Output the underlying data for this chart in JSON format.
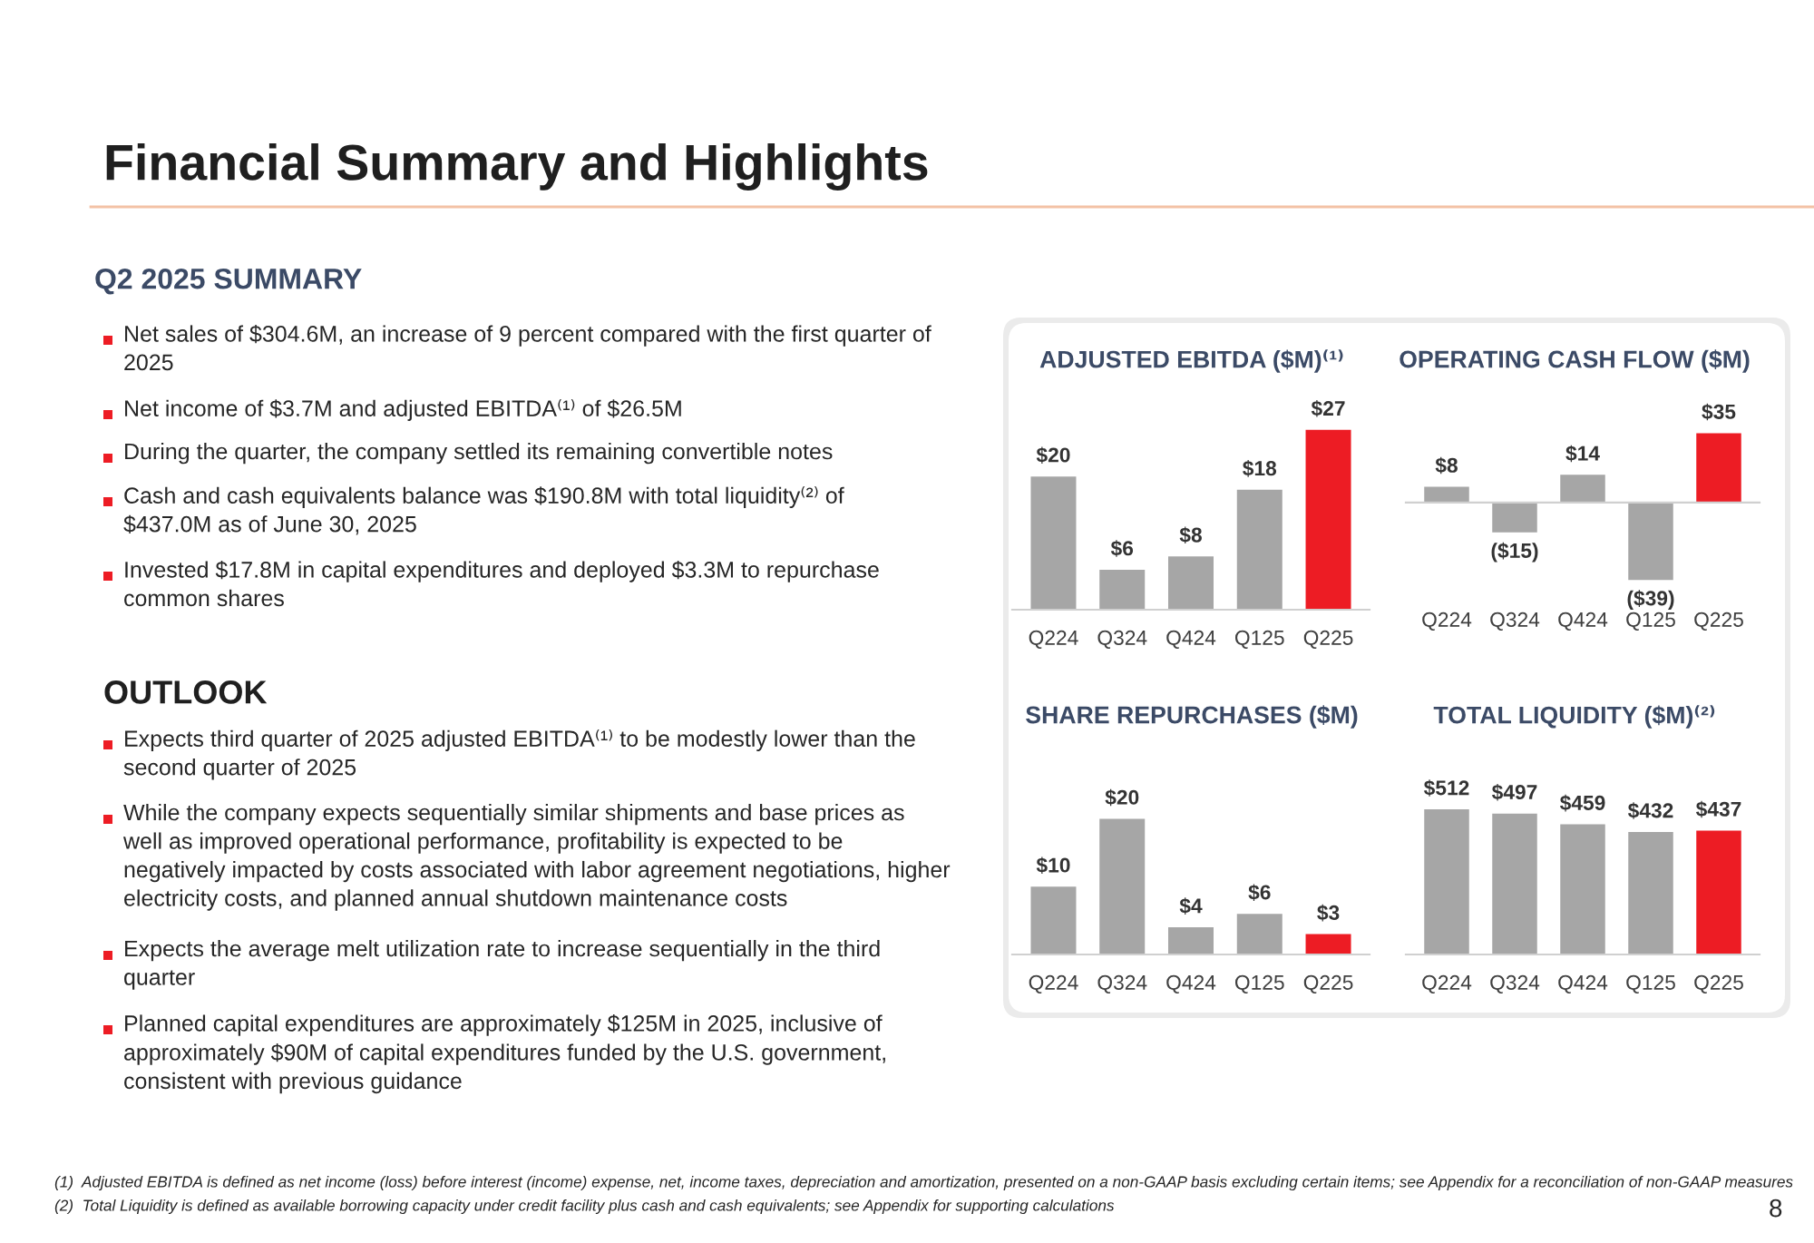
{
  "chart_data": [
    {
      "type": "other",
      "title": "Financial Summary and Highlights",
      "subtitle": "Q2 2025 SUMMARY",
      "annotations": [
        "Net sales of $304.6M, an increase of 9 percent compared with the first quarter of\n2025",
        "Net income of $3.7M and adjusted EBITDA⁽¹⁾ of $26.5M",
        "During the quarter, the company settled its remaining convertible notes",
        "Cash and cash equivalents balance was $190.8M with total liquidity⁽²⁾ of\n$437.0M as of June 30, 2025",
        "Invested $17.8M in capital expenditures and deployed $3.3M to repurchase\ncommon shares"
      ]
    },
    {
      "type": "other",
      "title": "OUTLOOK",
      "annotations": [
        "Expects third quarter of 2025 adjusted EBITDA⁽¹⁾ to be modestly lower than the\nsecond quarter of 2025",
        "While the company expects sequentially similar shipments and base prices as\nwell as improved operational performance, profitability is expected to be\nnegatively impacted by costs associated with labor agreement negotiations, higher\nelectricity costs, and planned annual shutdown maintenance costs",
        "Expects the average melt utilization rate to increase sequentially in the third\nquarter",
        "Planned capital expenditures are approximately $125M in 2025, inclusive of\napproximately $90M of capital expenditures funded by the U.S. government,\nconsistent with previous guidance"
      ]
    },
    {
      "type": "bar",
      "title": "ADJUSTED EBITDA ($M)⁽¹⁾",
      "categories": [
        "Q224",
        "Q324",
        "Q424",
        "Q125",
        "Q225"
      ],
      "values": [
        20,
        6,
        8,
        18,
        27
      ],
      "colors": [
        "#a6a6a6",
        "#a6a6a6",
        "#a6a6a6",
        "#a6a6a6",
        "#ed1c24"
      ],
      "value_labels": [
        "$20",
        "$6",
        "$8",
        "$18",
        "$27"
      ]
    },
    {
      "type": "bar",
      "title": "OPERATING CASH FLOW ($M)",
      "categories": [
        "Q224",
        "Q324",
        "Q424",
        "Q125",
        "Q225"
      ],
      "values": [
        8,
        -15,
        14,
        -39,
        35
      ],
      "colors": [
        "#a6a6a6",
        "#a6a6a6",
        "#a6a6a6",
        "#a6a6a6",
        "#ed1c24"
      ],
      "value_labels": [
        "$8",
        "($15)",
        "$14",
        "($39)",
        "$35"
      ]
    },
    {
      "type": "bar",
      "title": "SHARE REPURCHASES ($M)",
      "categories": [
        "Q224",
        "Q324",
        "Q424",
        "Q125",
        "Q225"
      ],
      "values": [
        10,
        20,
        4,
        6,
        3
      ],
      "colors": [
        "#a6a6a6",
        "#a6a6a6",
        "#a6a6a6",
        "#a6a6a6",
        "#ed1c24"
      ],
      "value_labels": [
        "$10",
        "$20",
        "$4",
        "$6",
        "$3"
      ]
    },
    {
      "type": "bar",
      "title": "TOTAL LIQUIDITY ($M)⁽²⁾",
      "categories": [
        "Q224",
        "Q324",
        "Q424",
        "Q125",
        "Q225"
      ],
      "values": [
        512,
        497,
        459,
        432,
        437
      ],
      "colors": [
        "#a6a6a6",
        "#a6a6a6",
        "#a6a6a6",
        "#a6a6a6",
        "#ed1c24"
      ],
      "value_labels": [
        "$512",
        "$497",
        "$459",
        "$432",
        "$437"
      ]
    },
    {
      "type": "other",
      "annotations": [
        "(1)  Adjusted EBITDA is defined as net income (loss) before interest (income) expense, net, income taxes, depreciation and amortization, presented on a non-GAAP basis excluding certain items; see Appendix for a reconciliation of non-GAAP measures",
        "(2)  Total Liquidity is defined as available borrowing capacity under credit facility plus cash and cash equivalents; see Appendix for supporting calculations",
        "8"
      ]
    }
  ]
}
